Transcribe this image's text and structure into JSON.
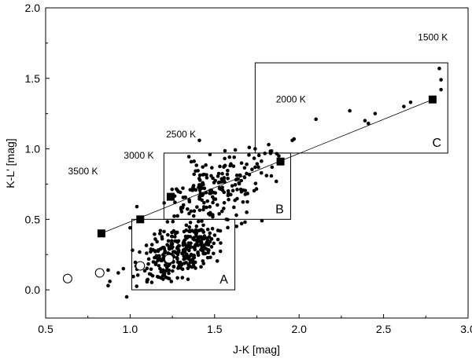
{
  "chart_data": {
    "type": "scatter",
    "xlabel": "J-K [mag]",
    "ylabel": "K-L' [mag]",
    "xlim": [
      0.5,
      3.0
    ],
    "ylim": [
      -0.2,
      2.0
    ],
    "xticks": [
      "0.5",
      "1.0",
      "1.5",
      "2.0",
      "2.5",
      "3.0"
    ],
    "yticks": [
      "0.0",
      "0.5",
      "1.0",
      "1.5",
      "2.0"
    ],
    "grid": false,
    "temperature_annotations": [
      {
        "text": "1500 K",
        "x": 2.88,
        "y": 1.77
      },
      {
        "text": "2000 K",
        "x": 2.04,
        "y": 1.33
      },
      {
        "text": "2500 K",
        "x": 1.39,
        "y": 1.08
      },
      {
        "text": "3000 K",
        "x": 1.14,
        "y": 0.93
      },
      {
        "text": "3500 K",
        "x": 0.81,
        "y": 0.82
      }
    ],
    "regions": [
      {
        "label": "A",
        "x0": 1.01,
        "x1": 1.62,
        "y0": 0.0,
        "y1": 0.5
      },
      {
        "label": "B",
        "x0": 1.2,
        "x1": 1.95,
        "y0": 0.5,
        "y1": 0.97
      },
      {
        "label": "C",
        "x0": 1.74,
        "x1": 2.88,
        "y0": 0.97,
        "y1": 1.61
      }
    ],
    "temperature_sequence": {
      "x": [
        0.83,
        1.06,
        1.24,
        1.89,
        2.79
      ],
      "y": [
        0.4,
        0.5,
        0.66,
        0.91,
        1.35
      ]
    },
    "fit_line": {
      "x": [
        0.83,
        2.79
      ],
      "y": [
        0.4,
        1.35
      ]
    },
    "open_circles": {
      "x": [
        0.63,
        0.82,
        1.06,
        1.23
      ],
      "y": [
        0.08,
        0.12,
        0.17,
        0.22
      ]
    },
    "scatter_points": {
      "seed": 20240517,
      "clusters": [
        {
          "n": 330,
          "cx": 1.3,
          "cy": 0.27,
          "sx": 0.12,
          "sy": 0.09,
          "xr": [
            0.99,
            1.62
          ],
          "yr": [
            0.02,
            0.5
          ]
        },
        {
          "n": 190,
          "cx": 1.5,
          "cy": 0.72,
          "sx": 0.16,
          "sy": 0.11,
          "xr": [
            1.16,
            1.95
          ],
          "yr": [
            0.48,
            1.01
          ]
        }
      ],
      "extra": {
        "x": [
          0.93,
          0.98,
          0.87,
          0.88,
          0.96,
          1.0,
          1.57,
          1.69,
          1.68,
          1.78,
          1.82,
          1.88,
          1.96,
          1.97,
          2.1,
          2.3,
          2.39,
          2.41,
          2.45,
          2.62,
          2.66,
          2.84,
          2.84,
          2.83,
          1.41,
          1.69,
          1.74,
          1.84,
          1.04,
          1.63,
          1.66,
          0.87
        ],
        "y": [
          0.12,
          -0.05,
          0.03,
          0.06,
          0.15,
          0.44,
          0.5,
          0.55,
          0.48,
          0.49,
          1.03,
          0.95,
          1.06,
          1.07,
          1.21,
          1.27,
          1.2,
          1.18,
          1.25,
          1.3,
          1.33,
          1.42,
          1.49,
          1.57,
          1.06,
          0.89,
          1.0,
          0.87,
          0.59,
          0.45,
          0.47,
          0.14
        ]
      }
    }
  }
}
